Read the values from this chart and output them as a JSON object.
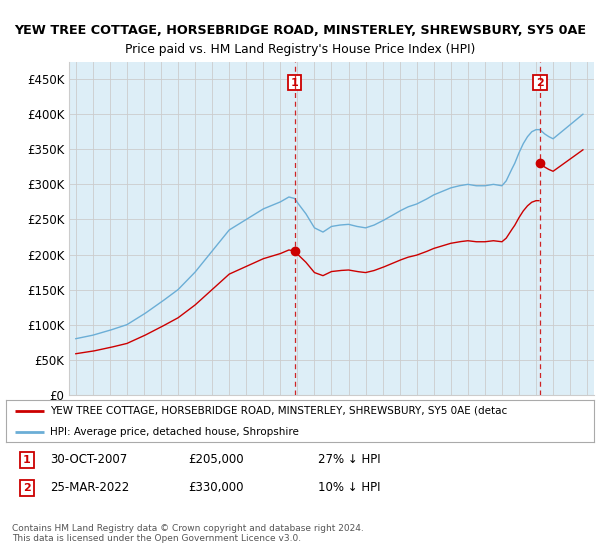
{
  "title1": "YEW TREE COTTAGE, HORSEBRIDGE ROAD, MINSTERLEY, SHREWSBURY, SY5 0AE",
  "title2": "Price paid vs. HM Land Registry's House Price Index (HPI)",
  "legend_line1": "YEW TREE COTTAGE, HORSEBRIDGE ROAD, MINSTERLEY, SHREWSBURY, SY5 0AE (detac",
  "legend_line2": "HPI: Average price, detached house, Shropshire",
  "annotation1": {
    "label": "1",
    "date": "30-OCT-2007",
    "price": "£205,000",
    "note": "27% ↓ HPI"
  },
  "annotation2": {
    "label": "2",
    "date": "25-MAR-2022",
    "price": "£330,000",
    "note": "10% ↓ HPI"
  },
  "footer": "Contains HM Land Registry data © Crown copyright and database right 2024.\nThis data is licensed under the Open Government Licence v3.0.",
  "hpi_color": "#6baed6",
  "hpi_fill_color": "#ddeef7",
  "price_color": "#cc0000",
  "annotation_color": "#cc0000",
  "background_color": "#ffffff",
  "grid_color": "#cccccc",
  "ylim": [
    0,
    475000
  ],
  "yticks": [
    0,
    50000,
    100000,
    150000,
    200000,
    250000,
    300000,
    350000,
    400000,
    450000
  ],
  "sale1_year": 2007.83,
  "sale1_price": 205000,
  "sale2_year": 2022.23,
  "sale2_price": 330000
}
